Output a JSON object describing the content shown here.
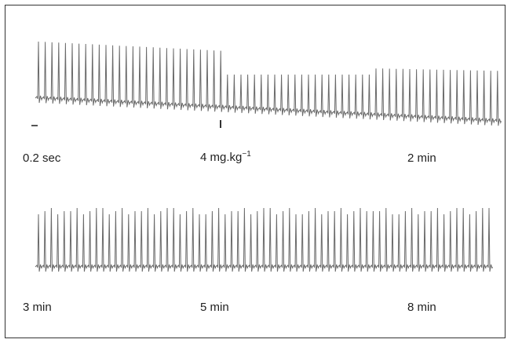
{
  "labels": {
    "scale": "0.2 sec",
    "dose_prefix": "4 mg.kg",
    "dose_exp": "−1",
    "t_2min": "2 min",
    "t_3min": "3 min",
    "t_5min": "5 min",
    "t_8min": "8 min"
  },
  "trace_color": "#6a6a6a"
}
